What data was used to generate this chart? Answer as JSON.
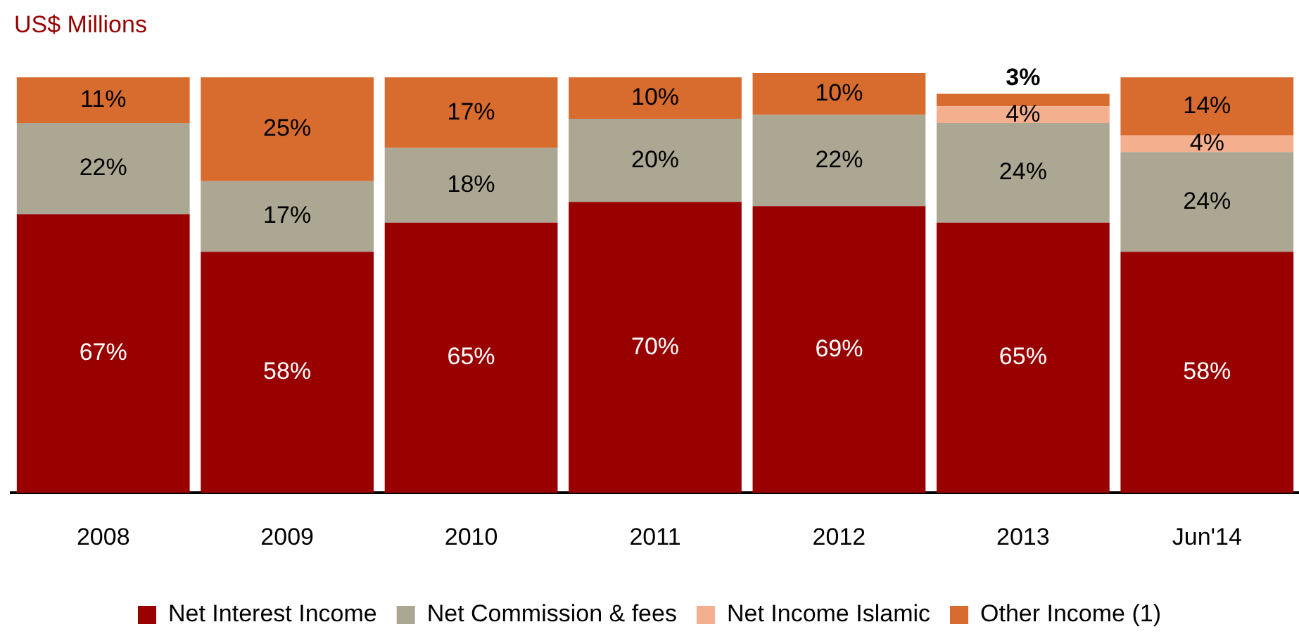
{
  "chart_data": {
    "type": "bar",
    "ylabel": "US$ Millions",
    "stacked": true,
    "legend": "bottom",
    "grid": false,
    "tick_labels": "x",
    "categories": [
      "2008",
      "2009",
      "2010",
      "2011",
      "2012",
      "2013",
      "Jun'14"
    ],
    "ylim": [
      0,
      101
    ],
    "series": [
      {
        "name": "Net Interest Income",
        "color": "#990000",
        "values": [
          67,
          58,
          65,
          70,
          69,
          65,
          58
        ],
        "value_labels": [
          "67%",
          "58%",
          "65%",
          "70%",
          "69%",
          "65%",
          "58%"
        ]
      },
      {
        "name": "Net Commission & fees",
        "color": "#aca792",
        "values": [
          22,
          17,
          18,
          20,
          22,
          24,
          24
        ],
        "value_labels": [
          "22%",
          "17%",
          "18%",
          "20%",
          "22%",
          "24%",
          "24%"
        ]
      },
      {
        "name": "Net Income Islamic",
        "color": "#f4b08e",
        "values": [
          null,
          null,
          null,
          null,
          null,
          4,
          4
        ],
        "value_labels": [
          null,
          null,
          null,
          null,
          null,
          "4%",
          "4%"
        ]
      },
      {
        "name": "Other Income (1)",
        "color": "#d86b2e",
        "values": [
          11,
          25,
          17,
          10,
          10,
          3,
          14
        ],
        "value_labels": [
          "11%",
          "25%",
          "17%",
          "10%",
          "10%",
          "3%",
          "14%"
        ]
      }
    ]
  }
}
